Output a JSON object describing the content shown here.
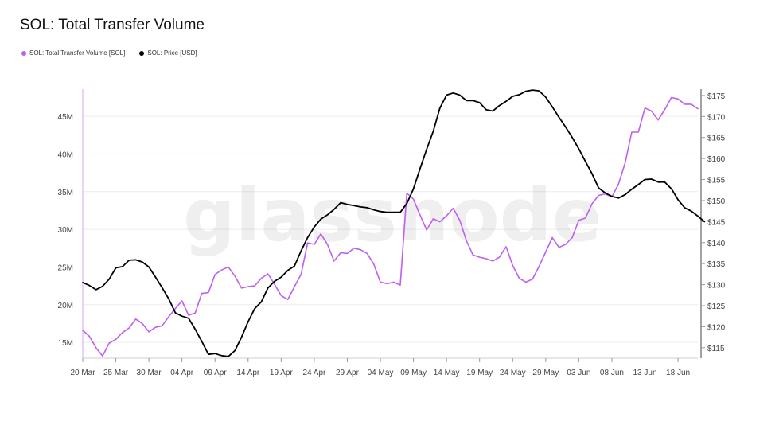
{
  "chart_data": {
    "type": "line",
    "title": "SOL: Total Transfer Volume",
    "watermark": "glassnode",
    "legend_position": "top-left",
    "grid": true,
    "x_tick_labels": [
      "20 Mar",
      "25 Mar",
      "30 Mar",
      "04 Apr",
      "09 Apr",
      "14 Apr",
      "19 Apr",
      "24 Apr",
      "29 Apr",
      "04 May",
      "09 May",
      "14 May",
      "19 May",
      "24 May",
      "29 May",
      "03 Jun",
      "08 Jun",
      "13 Jun",
      "18 Jun"
    ],
    "y_left_ticks": [
      "15M",
      "20M",
      "25M",
      "30M",
      "35M",
      "40M",
      "45M"
    ],
    "y_left_tick_values": [
      15,
      20,
      25,
      30,
      35,
      40,
      45
    ],
    "y_left_range": [
      12.9,
      48.6
    ],
    "y_right_ticks": [
      "$115",
      "$120",
      "$125",
      "$130",
      "$135",
      "$140",
      "$145",
      "$150",
      "$155",
      "$160",
      "$165",
      "$170",
      "$175"
    ],
    "y_right_tick_values": [
      115,
      120,
      125,
      130,
      135,
      140,
      145,
      150,
      155,
      160,
      165,
      170,
      175
    ],
    "y_right_range": [
      112.5,
      176.5
    ],
    "series": [
      {
        "name": "SOL: Total Transfer Volume [SOL]",
        "axis": "left",
        "color": "#bf5ff0",
        "values": [
          16.6,
          15.8,
          14.3,
          13.2,
          14.9,
          15.4,
          16.3,
          16.9,
          18.1,
          17.5,
          16.4,
          17.0,
          17.2,
          18.4,
          19.5,
          20.5,
          18.6,
          18.9,
          21.5,
          21.6,
          24.0,
          24.6,
          25.0,
          23.8,
          22.2,
          22.4,
          22.5,
          23.5,
          24.1,
          22.7,
          21.2,
          20.7,
          22.4,
          24.0,
          28.2,
          28.0,
          29.4,
          28.0,
          25.8,
          26.9,
          26.8,
          27.5,
          27.3,
          26.8,
          25.4,
          23.0,
          22.8,
          23.0,
          22.6,
          34.8,
          34.0,
          31.9,
          29.9,
          31.4,
          31.0,
          31.8,
          32.8,
          31.2,
          28.5,
          26.6,
          26.3,
          26.1,
          25.8,
          26.3,
          27.7,
          25.2,
          23.5,
          23.0,
          23.4,
          25.1,
          27.0,
          28.9,
          27.6,
          28.0,
          28.9,
          31.2,
          31.5,
          33.4,
          34.5,
          34.7,
          34.3,
          36.0,
          38.8,
          42.9,
          42.9,
          46.1,
          45.7,
          44.5,
          45.9,
          47.5,
          47.3,
          46.6,
          46.6,
          46.0
        ]
      },
      {
        "name": "SOL: Price [USD]",
        "axis": "right",
        "color": "#000000",
        "values": [
          130.5,
          129.8,
          128.8,
          129.6,
          131.3,
          134.0,
          134.3,
          135.8,
          135.9,
          135.4,
          134.2,
          131.8,
          129.3,
          126.6,
          123.3,
          122.5,
          122.0,
          119.4,
          116.5,
          113.4,
          113.6,
          113.1,
          112.9,
          114.3,
          117.5,
          121.2,
          124.3,
          125.9,
          129.2,
          130.8,
          131.8,
          133.4,
          134.4,
          138.0,
          141.2,
          143.7,
          145.6,
          146.6,
          147.9,
          149.5,
          149.1,
          148.8,
          148.5,
          148.3,
          147.8,
          147.4,
          147.2,
          147.2,
          147.2,
          149.3,
          152.8,
          157.6,
          162.2,
          166.5,
          172.0,
          175.1,
          175.6,
          175.1,
          173.8,
          173.8,
          173.3,
          171.6,
          171.3,
          172.6,
          173.6,
          174.8,
          175.2,
          176.0,
          176.3,
          176.1,
          174.6,
          172.3,
          169.8,
          167.5,
          165.0,
          162.3,
          159.3,
          156.4,
          153.0,
          151.8,
          151.0,
          150.6,
          151.4,
          152.7,
          153.8,
          155.0,
          155.1,
          154.4,
          154.4,
          152.8,
          150.2,
          148.3,
          147.5,
          146.3,
          145.0
        ]
      }
    ]
  }
}
